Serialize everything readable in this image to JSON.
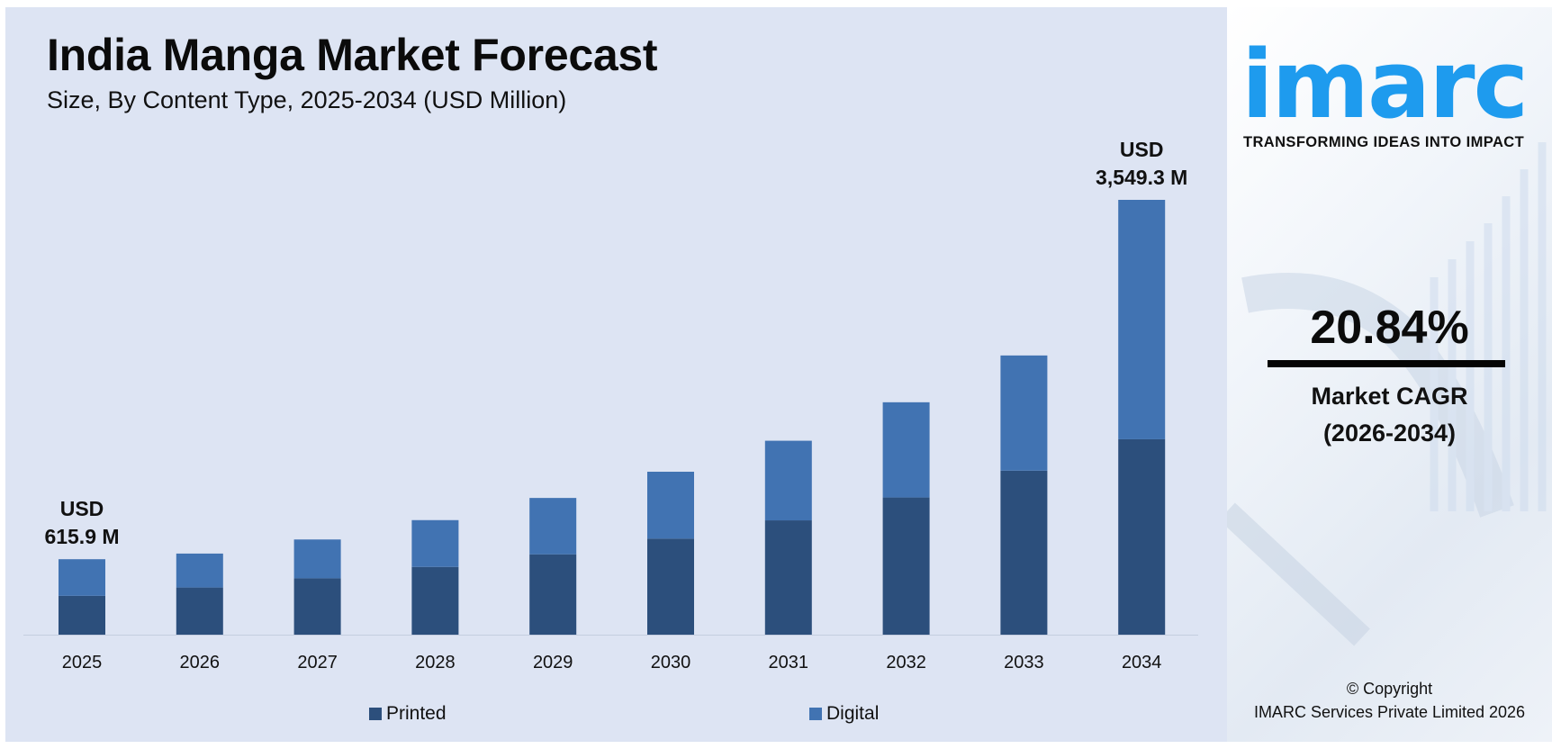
{
  "chart_data": {
    "type": "bar",
    "stacked": true,
    "title": "India Manga Market Forecast",
    "subtitle": "Size, By Content Type, 2025-2034 (USD Million)",
    "categories": [
      "2025",
      "2026",
      "2027",
      "2028",
      "2029",
      "2030",
      "2031",
      "2032",
      "2033",
      "2034"
    ],
    "series": [
      {
        "name": "Printed",
        "color": "#2c4f7c",
        "values": [
          317,
          385,
          460,
          553,
          656,
          784,
          933,
          1120,
          1339,
          1595
        ]
      },
      {
        "name": "Digital",
        "color": "#4173b2",
        "values": [
          298.9,
          277,
          317,
          382,
          460,
          546,
          650,
          777,
          940,
          1954.3
        ]
      }
    ],
    "annotations": [
      {
        "category": "2025",
        "line1": "USD",
        "line2": "615.9 M"
      },
      {
        "category": "2034",
        "line1": "USD",
        "line2": "3,549.3 M"
      }
    ],
    "ylim": [
      0,
      3549.3
    ],
    "grid": false,
    "legend_position": "bottom"
  },
  "legend": {
    "printed": "Printed",
    "digital": "Digital"
  },
  "sidebar": {
    "logo": "imarc",
    "tagline": "TRANSFORMING IDEAS INTO IMPACT",
    "cagr_value": "20.84%",
    "cagr_label": "Market CAGR",
    "cagr_period": "(2026-2034)",
    "copyright": "© Copyright",
    "company": "IMARC Services Private Limited 2026"
  }
}
